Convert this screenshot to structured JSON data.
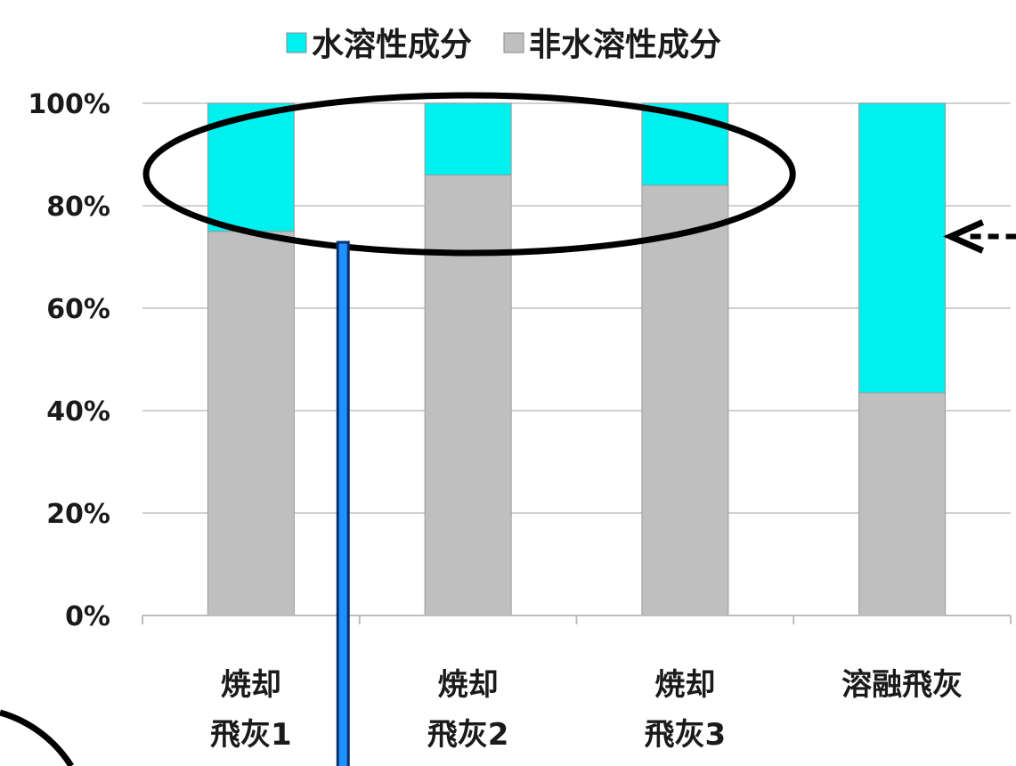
{
  "chart_data": {
    "type": "bar",
    "stacked": true,
    "percent_stacked": true,
    "categories": [
      [
        "焼却",
        "飛灰1"
      ],
      [
        "焼却",
        "飛灰2"
      ],
      [
        "焼却",
        "飛灰3"
      ],
      [
        "溶融飛灰"
      ]
    ],
    "series": [
      {
        "name": "非水溶性成分",
        "color": "#bfbfbf",
        "values": [
          75,
          86,
          84,
          43.5
        ]
      },
      {
        "name": "水溶性成分",
        "color": "#00f0f0",
        "values": [
          25,
          14,
          16,
          56.5
        ]
      }
    ],
    "legend_order": [
      "水溶性成分",
      "非水溶性成分"
    ],
    "legend_position": "top",
    "ylim": [
      0,
      100
    ],
    "yticks": [
      "0%",
      "20%",
      "40%",
      "60%",
      "80%",
      "100%"
    ],
    "grid": true,
    "annotations": {
      "ellipse_range": [
        72,
        100
      ],
      "arrow_target_value": 74,
      "arrow_style": "dashed",
      "connector_color": "#1e90ff"
    }
  }
}
